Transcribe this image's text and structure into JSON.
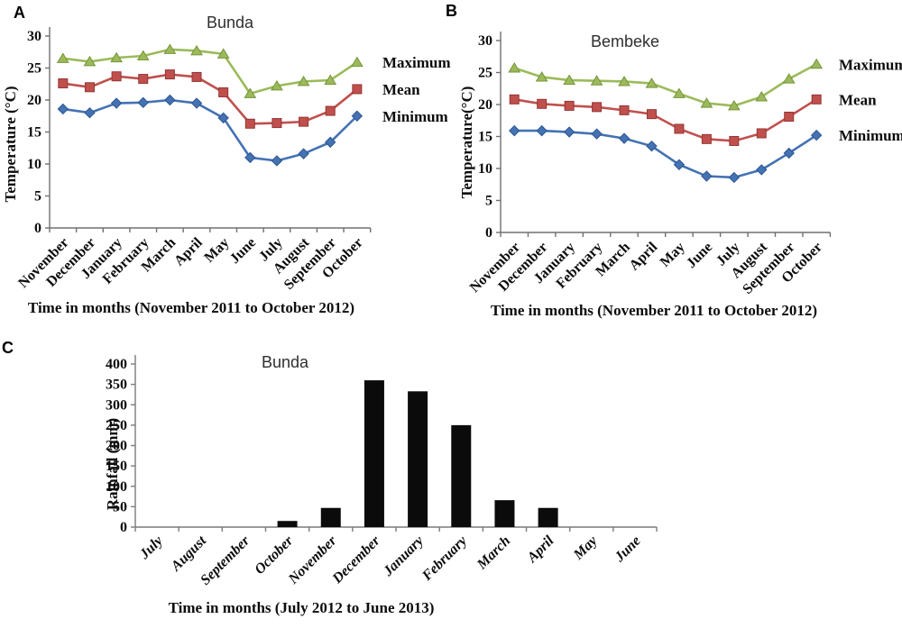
{
  "figure": {
    "panels": [
      "A",
      "B",
      "C"
    ]
  },
  "chart_data": [
    {
      "panel_label": "A",
      "type": "line",
      "title": "Bunda",
      "ylabel": "Temperature (°C)",
      "xlabel": "Time in months (November 2011 to October 2012)",
      "ylim": [
        0,
        30
      ],
      "yticks": [
        0,
        5,
        10,
        15,
        20,
        25,
        30
      ],
      "categories": [
        "November",
        "December",
        "January",
        "February",
        "March",
        "April",
        "May",
        "June",
        "July",
        "August",
        "September",
        "October"
      ],
      "legend_position": "right",
      "grid": false,
      "series": [
        {
          "name": "Maximum",
          "marker": "triangle",
          "color": "#9BBB59",
          "edge": "#77933C",
          "values": [
            26.5,
            26.0,
            26.6,
            26.9,
            27.9,
            27.7,
            27.2,
            21.0,
            22.2,
            22.9,
            23.1,
            25.9
          ]
        },
        {
          "name": "Mean",
          "marker": "square",
          "color": "#C0504D",
          "edge": "#943634",
          "values": [
            22.6,
            22.0,
            23.7,
            23.3,
            24.0,
            23.6,
            21.2,
            16.3,
            16.4,
            16.6,
            18.3,
            21.7
          ]
        },
        {
          "name": "Minimum",
          "marker": "diamond",
          "color": "#4472B4",
          "edge": "#2C5791",
          "values": [
            18.6,
            18.0,
            19.5,
            19.6,
            20.0,
            19.5,
            17.2,
            11.0,
            10.5,
            11.6,
            13.4,
            17.5
          ]
        }
      ]
    },
    {
      "panel_label": "B",
      "type": "line",
      "title": "Bembeke",
      "ylabel": "Temperature(°C)",
      "xlabel": "Time in months (November 2011 to October 2012)",
      "ylim": [
        0,
        30
      ],
      "yticks": [
        0,
        5,
        10,
        15,
        20,
        25,
        30
      ],
      "categories": [
        "November",
        "December",
        "January",
        "February",
        "March",
        "April",
        "May",
        "June",
        "July",
        "August",
        "September",
        "October"
      ],
      "legend_position": "right",
      "grid": false,
      "series": [
        {
          "name": "Maximum",
          "marker": "triangle",
          "color": "#9BBB59",
          "edge": "#77933C",
          "values": [
            25.7,
            24.3,
            23.8,
            23.7,
            23.6,
            23.3,
            21.7,
            20.2,
            19.8,
            21.2,
            24.0,
            26.3
          ]
        },
        {
          "name": "Mean",
          "marker": "square",
          "color": "#C0504D",
          "edge": "#943634",
          "values": [
            20.8,
            20.1,
            19.8,
            19.6,
            19.1,
            18.5,
            16.2,
            14.6,
            14.3,
            15.5,
            18.1,
            20.8
          ]
        },
        {
          "name": "Minimum",
          "marker": "diamond",
          "color": "#4472B4",
          "edge": "#2C5791",
          "values": [
            15.9,
            15.9,
            15.7,
            15.4,
            14.7,
            13.5,
            10.6,
            8.8,
            8.6,
            9.8,
            12.4,
            15.2
          ]
        }
      ]
    },
    {
      "panel_label": "C",
      "type": "bar",
      "title": "Bunda",
      "ylabel": "Rainfall (mm)",
      "xlabel": "Time in months (July 2012 to June 2013)",
      "ylim": [
        0,
        400
      ],
      "yticks": [
        0,
        50,
        100,
        150,
        200,
        250,
        300,
        350,
        400
      ],
      "categories": [
        "July",
        "August",
        "September",
        "October",
        "November",
        "December",
        "January",
        "February",
        "March",
        "April",
        "May",
        "June"
      ],
      "italic_categories": true,
      "bar_color": "#0B0B0B",
      "grid": false,
      "series": [
        {
          "name": "Rainfall",
          "values": [
            0,
            0,
            0,
            15,
            47,
            360,
            333,
            250,
            66,
            47,
            0,
            0
          ]
        }
      ]
    }
  ]
}
